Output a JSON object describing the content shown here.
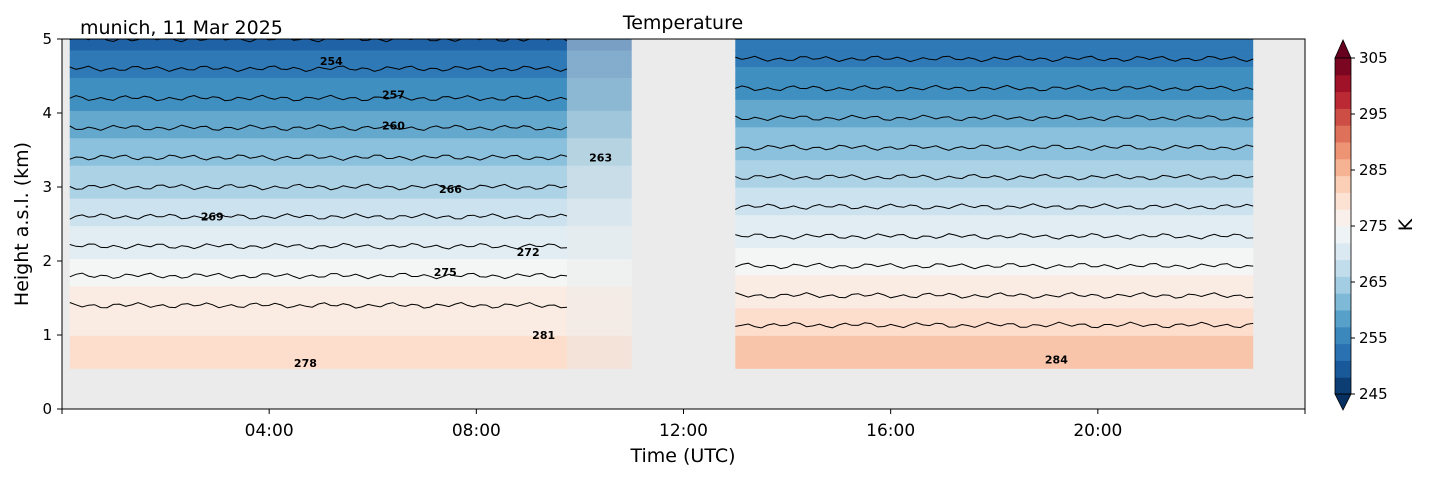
{
  "chart_data": {
    "type": "heatmap",
    "title": "Temperature",
    "subtitle": "munich, 11 Mar 2025",
    "xlabel": "Time (UTC)",
    "ylabel": "Height a.s.l. (km)",
    "xlim_hours": [
      0,
      24
    ],
    "ylim": [
      0,
      5
    ],
    "x_ticks": [
      {
        "value": 4,
        "label": "04:00"
      },
      {
        "value": 8,
        "label": "08:00"
      },
      {
        "value": 12,
        "label": "12:00"
      },
      {
        "value": 16,
        "label": "16:00"
      },
      {
        "value": 20,
        "label": "20:00"
      }
    ],
    "y_ticks": [
      {
        "value": 0,
        "label": "0"
      },
      {
        "value": 1,
        "label": "1"
      },
      {
        "value": 2,
        "label": "2"
      },
      {
        "value": 3,
        "label": "3"
      },
      {
        "value": 4,
        "label": "4"
      },
      {
        "value": 5,
        "label": "5"
      }
    ],
    "colorbar": {
      "label": "K",
      "range": [
        245,
        305
      ],
      "ticks": [
        {
          "value": 245,
          "label": "245"
        },
        {
          "value": 255,
          "label": "255"
        },
        {
          "value": 265,
          "label": "265"
        },
        {
          "value": 275,
          "label": "275"
        },
        {
          "value": 285,
          "label": "285"
        },
        {
          "value": 295,
          "label": "295"
        },
        {
          "value": 305,
          "label": "305"
        }
      ],
      "colormap": [
        "#053061",
        "#2166ac",
        "#4393c3",
        "#92c5de",
        "#d1e5f0",
        "#f7f7f7",
        "#fddbc7",
        "#f4a582",
        "#d6604d",
        "#b2182b",
        "#67001f"
      ]
    },
    "data_coverage": [
      {
        "start_hour": 0.15,
        "end_hour": 9.75
      },
      {
        "start_hour": 9.75,
        "end_hour": 11.0,
        "partial": true
      },
      {
        "start_hour": 13.0,
        "end_hour": 23.0
      }
    ],
    "min_height_km": 0.55,
    "profile": {
      "heights_km": [
        0.55,
        1.0,
        1.4,
        1.8,
        2.2,
        2.6,
        3.0,
        3.4,
        3.8,
        4.2,
        4.6,
        5.0
      ],
      "temperature_K_period1": [
        279,
        279,
        278,
        275,
        272,
        269,
        266,
        263,
        260,
        257,
        254,
        251
      ],
      "temperature_K_period2": [
        283,
        282,
        279,
        276,
        273,
        270,
        267,
        264,
        261,
        258,
        255,
        252
      ]
    },
    "contour_labels": [
      {
        "text": "254",
        "hour": 5.2,
        "km": 4.7
      },
      {
        "text": "257",
        "hour": 6.4,
        "km": 4.25
      },
      {
        "text": "260",
        "hour": 6.4,
        "km": 3.83
      },
      {
        "text": "263",
        "hour": 10.4,
        "km": 3.4
      },
      {
        "text": "266",
        "hour": 7.5,
        "km": 2.97
      },
      {
        "text": "269",
        "hour": 2.9,
        "km": 2.6
      },
      {
        "text": "272",
        "hour": 9.0,
        "km": 2.12
      },
      {
        "text": "275",
        "hour": 7.4,
        "km": 1.85
      },
      {
        "text": "281",
        "hour": 9.3,
        "km": 1.0
      },
      {
        "text": "278",
        "hour": 4.7,
        "km": 0.62
      },
      {
        "text": "284",
        "hour": 19.2,
        "km": 0.67
      }
    ]
  }
}
